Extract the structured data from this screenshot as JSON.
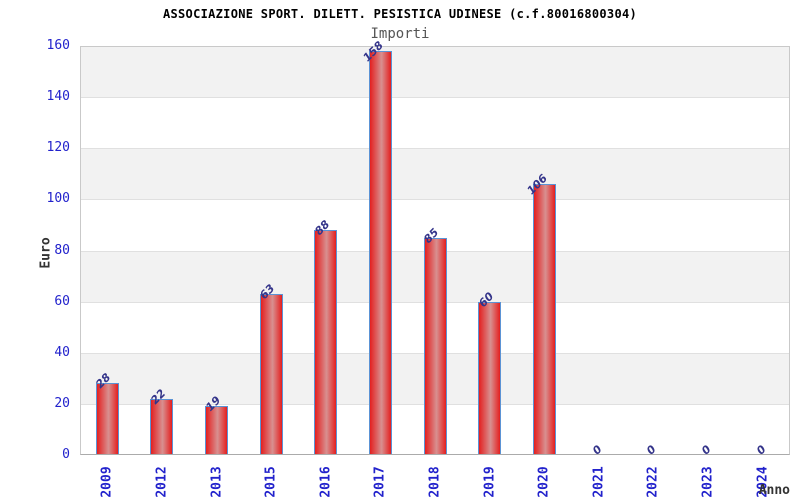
{
  "page": {
    "background": "#ffffff"
  },
  "chart_data": {
    "type": "bar",
    "title": "ASSOCIAZIONE SPORT. DILETT. PESISTICA UDINESE (c.f.80016800304)",
    "subtitle": "Importi",
    "xlabel": "Anno",
    "ylabel": "Euro",
    "categories": [
      "2009",
      "2012",
      "2013",
      "2015",
      "2016",
      "2017",
      "2018",
      "2019",
      "2020",
      "2021",
      "2022",
      "2023",
      "2024"
    ],
    "values": [
      28,
      22,
      19,
      63,
      88,
      158,
      85,
      60,
      106,
      0,
      0,
      0,
      0
    ],
    "bar_value_labels": [
      "28",
      "22",
      "19",
      "63",
      "88",
      "158",
      "85",
      "60",
      "106",
      "0",
      "0",
      "0",
      "0"
    ],
    "ylim": [
      0,
      160
    ],
    "ytick_step": 20,
    "ytick_labels": [
      "0",
      "20",
      "40",
      "60",
      "80",
      "100",
      "120",
      "140",
      "160"
    ],
    "legend": "none",
    "grid": "horizontal-alternating-bands",
    "colors": {
      "title": "#000000",
      "subtitle": "#555555",
      "axis_title": "#333333",
      "tick_label": "#2222cc",
      "value_label": "#34348a",
      "bar_edge_fill": "#e41f1f",
      "bar_center_fill": "#d89090",
      "bar_border": "#5b93d5",
      "band_gray": "#f2f2f2",
      "band_white": "#ffffff",
      "gridline": "#e0e0e0",
      "plot_border": "#c9c9c9"
    }
  }
}
